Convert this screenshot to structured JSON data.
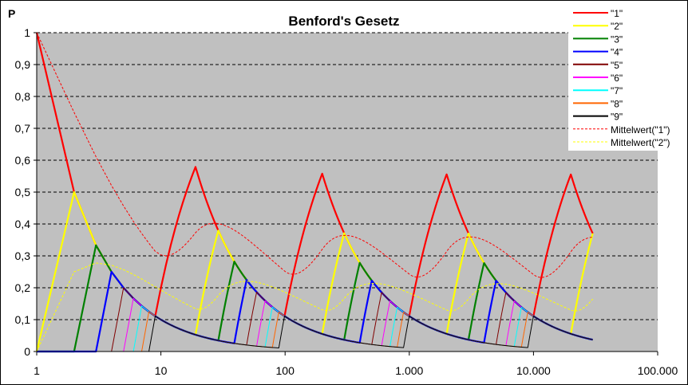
{
  "chart_data": {
    "type": "line",
    "title": "Benford's Gesetz",
    "ylabel": "P",
    "xlabel": "",
    "x_scale": "log",
    "xlim": [
      1,
      100000
    ],
    "ylim": [
      0,
      1
    ],
    "x_ticks": [
      1,
      10,
      100,
      1000,
      10000,
      100000
    ],
    "x_tick_labels": [
      "1",
      "10",
      "100",
      "1.000",
      "10.000",
      "100.000"
    ],
    "y_ticks": [
      0,
      0.1,
      0.2,
      0.3,
      0.4,
      0.5,
      0.6,
      0.7,
      0.8,
      0.9,
      1
    ],
    "y_tick_labels": [
      "0",
      "0,1",
      "0,2",
      "0,3",
      "0,4",
      "0,5",
      "0,6",
      "0,7",
      "0,8",
      "0,9",
      "1"
    ],
    "grid": "horizontal dashed",
    "legend_position": "top-right",
    "x_max": 30000,
    "series": [
      {
        "name": "\"1\"",
        "digit": 1,
        "color": "#ff0000",
        "style": "solid"
      },
      {
        "name": "\"2\"",
        "digit": 2,
        "color": "#ffff00",
        "style": "solid"
      },
      {
        "name": "\"3\"",
        "digit": 3,
        "color": "#008000",
        "style": "solid"
      },
      {
        "name": "\"4\"",
        "digit": 4,
        "color": "#0000ff",
        "style": "solid"
      },
      {
        "name": "\"5\"",
        "digit": 5,
        "color": "#800000",
        "style": "solid"
      },
      {
        "name": "\"6\"",
        "digit": 6,
        "color": "#ff00ff",
        "style": "solid"
      },
      {
        "name": "\"7\"",
        "digit": 7,
        "color": "#00ffff",
        "style": "solid"
      },
      {
        "name": "\"8\"",
        "digit": 8,
        "color": "#ff6600",
        "style": "solid"
      },
      {
        "name": "\"9\"",
        "digit": 9,
        "color": "#000000",
        "style": "solid"
      },
      {
        "name": "Mittelwert(\"1\")",
        "digit": 1,
        "mean": true,
        "color": "#ff0000",
        "style": "dashed"
      },
      {
        "name": "Mittelwert(\"2\")",
        "digit": 2,
        "mean": true,
        "color": "#ffff00",
        "style": "dashed"
      }
    ]
  }
}
